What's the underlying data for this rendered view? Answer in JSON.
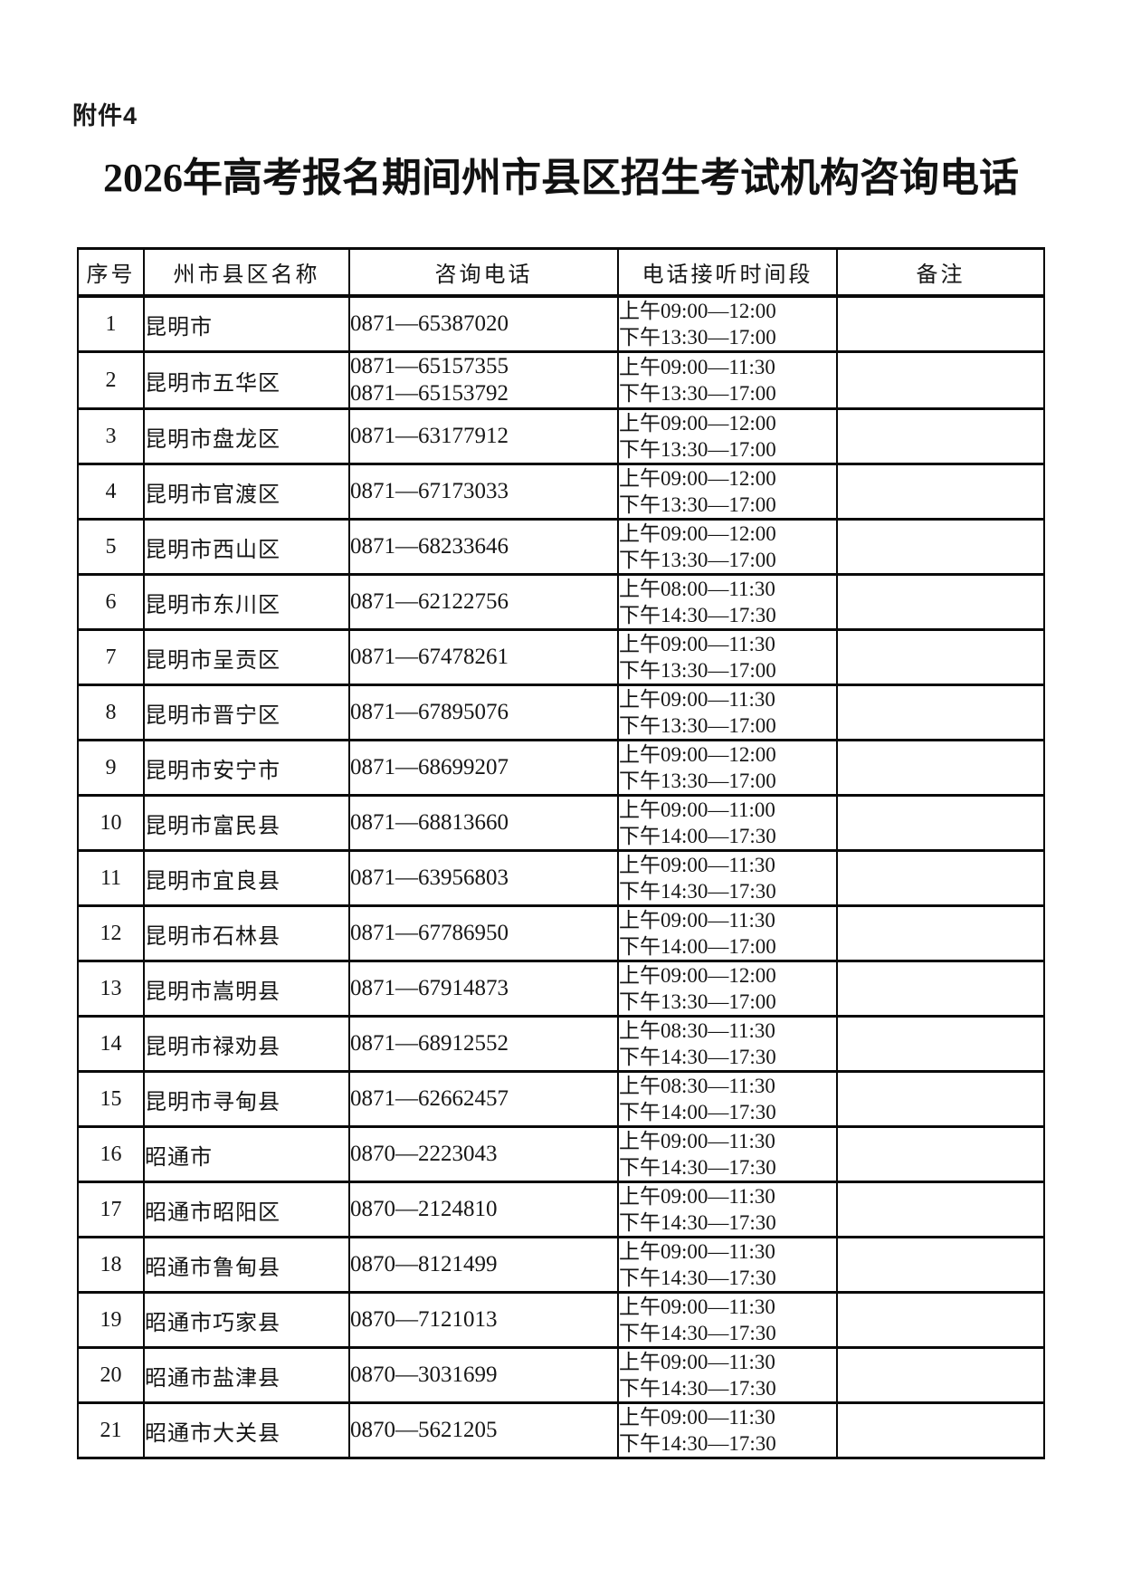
{
  "page": {
    "attachment_label": "附件4",
    "title": "2026年高考报名期间州市县区招生考试机构咨询电话"
  },
  "table": {
    "headers": [
      "序号",
      "州市县区名称",
      "咨询电话",
      "电话接听时间段",
      "备注"
    ],
    "rows": [
      {
        "no": "1",
        "name": "昆明市",
        "phones": [
          "0871—65387020"
        ],
        "times": [
          "上午09:00—12:00",
          "下午13:30—17:00"
        ],
        "note": ""
      },
      {
        "no": "2",
        "name": "昆明市五华区",
        "phones": [
          "0871—65157355",
          "0871—65153792"
        ],
        "times": [
          "上午09:00—11:30",
          "下午13:30—17:00"
        ],
        "note": ""
      },
      {
        "no": "3",
        "name": "昆明市盘龙区",
        "phones": [
          "0871—63177912"
        ],
        "times": [
          "上午09:00—12:00",
          "下午13:30—17:00"
        ],
        "note": ""
      },
      {
        "no": "4",
        "name": "昆明市官渡区",
        "phones": [
          "0871—67173033"
        ],
        "times": [
          "上午09:00—12:00",
          "下午13:30—17:00"
        ],
        "note": ""
      },
      {
        "no": "5",
        "name": "昆明市西山区",
        "phones": [
          "0871—68233646"
        ],
        "times": [
          "上午09:00—12:00",
          "下午13:30—17:00"
        ],
        "note": ""
      },
      {
        "no": "6",
        "name": "昆明市东川区",
        "phones": [
          "0871—62122756"
        ],
        "times": [
          "上午08:00—11:30",
          "下午14:30—17:30"
        ],
        "note": ""
      },
      {
        "no": "7",
        "name": "昆明市呈贡区",
        "phones": [
          "0871—67478261"
        ],
        "times": [
          "上午09:00—11:30",
          "下午13:30—17:00"
        ],
        "note": ""
      },
      {
        "no": "8",
        "name": "昆明市晋宁区",
        "phones": [
          "0871—67895076"
        ],
        "times": [
          "上午09:00—11:30",
          "下午13:30—17:00"
        ],
        "note": ""
      },
      {
        "no": "9",
        "name": "昆明市安宁市",
        "phones": [
          "0871—68699207"
        ],
        "times": [
          "上午09:00—12:00",
          "下午13:30—17:00"
        ],
        "note": ""
      },
      {
        "no": "10",
        "name": "昆明市富民县",
        "phones": [
          "0871—68813660"
        ],
        "times": [
          "上午09:00—11:00",
          "下午14:00—17:30"
        ],
        "note": ""
      },
      {
        "no": "11",
        "name": "昆明市宜良县",
        "phones": [
          "0871—63956803"
        ],
        "times": [
          "上午09:00—11:30",
          "下午14:30—17:30"
        ],
        "note": ""
      },
      {
        "no": "12",
        "name": "昆明市石林县",
        "phones": [
          "0871—67786950"
        ],
        "times": [
          "上午09:00—11:30",
          "下午14:00—17:00"
        ],
        "note": ""
      },
      {
        "no": "13",
        "name": "昆明市嵩明县",
        "phones": [
          "0871—67914873"
        ],
        "times": [
          "上午09:00—12:00",
          "下午13:30—17:00"
        ],
        "note": ""
      },
      {
        "no": "14",
        "name": "昆明市禄劝县",
        "phones": [
          "0871—68912552"
        ],
        "times": [
          "上午08:30—11:30",
          "下午14:30—17:30"
        ],
        "note": ""
      },
      {
        "no": "15",
        "name": "昆明市寻甸县",
        "phones": [
          "0871—62662457"
        ],
        "times": [
          "上午08:30—11:30",
          "下午14:00—17:30"
        ],
        "note": ""
      },
      {
        "no": "16",
        "name": "昭通市",
        "phones": [
          "0870—2223043"
        ],
        "times": [
          "上午09:00—11:30",
          "下午14:30—17:30"
        ],
        "note": ""
      },
      {
        "no": "17",
        "name": "昭通市昭阳区",
        "phones": [
          "0870—2124810"
        ],
        "times": [
          "上午09:00—11:30",
          "下午14:30—17:30"
        ],
        "note": ""
      },
      {
        "no": "18",
        "name": "昭通市鲁甸县",
        "phones": [
          "0870—8121499"
        ],
        "times": [
          "上午09:00—11:30",
          "下午14:30—17:30"
        ],
        "note": ""
      },
      {
        "no": "19",
        "name": "昭通市巧家县",
        "phones": [
          "0870—7121013"
        ],
        "times": [
          "上午09:00—11:30",
          "下午14:30—17:30"
        ],
        "note": ""
      },
      {
        "no": "20",
        "name": "昭通市盐津县",
        "phones": [
          "0870—3031699"
        ],
        "times": [
          "上午09:00—11:30",
          "下午14:30—17:30"
        ],
        "note": ""
      },
      {
        "no": "21",
        "name": "昭通市大关县",
        "phones": [
          "0870—5621205"
        ],
        "times": [
          "上午09:00—11:30",
          "下午14:30—17:30"
        ],
        "note": ""
      }
    ]
  }
}
